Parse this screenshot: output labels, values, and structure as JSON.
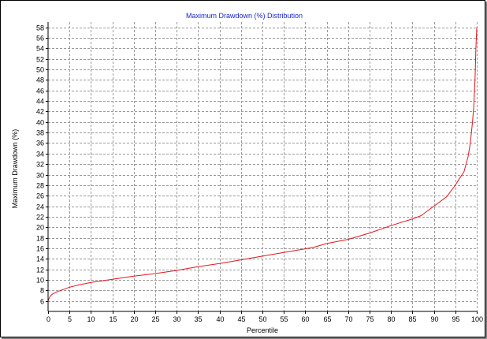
{
  "chart_data": {
    "type": "line",
    "title": "Maximum Drawdown (%) Distribution",
    "xlabel": "Percentile",
    "ylabel": "Maximum Drawdown (%)",
    "xlim": [
      0,
      100
    ],
    "ylim": [
      4,
      59
    ],
    "x_ticks": [
      0,
      5,
      10,
      15,
      20,
      25,
      30,
      35,
      40,
      45,
      50,
      55,
      60,
      65,
      70,
      75,
      80,
      85,
      90,
      95,
      100
    ],
    "y_ticks": [
      6,
      8,
      10,
      12,
      14,
      16,
      18,
      20,
      22,
      24,
      26,
      28,
      30,
      32,
      34,
      36,
      38,
      40,
      42,
      44,
      46,
      48,
      50,
      52,
      54,
      56,
      58
    ],
    "grid": true,
    "line_color": "#e8131b",
    "series": [
      {
        "x": [
          0,
          0.3,
          0.6,
          1,
          2,
          3,
          5,
          7,
          10,
          15,
          20,
          25,
          30,
          35,
          40,
          45,
          50,
          55,
          60,
          62,
          65,
          70,
          75,
          80,
          85,
          87,
          90,
          93,
          95,
          96,
          97,
          98,
          98.5,
          99,
          99.3,
          99.6,
          99.8,
          100
        ],
        "y": [
          6.0,
          6.6,
          7.0,
          7.3,
          7.7,
          8.0,
          8.6,
          9.0,
          9.5,
          10.1,
          10.7,
          11.2,
          11.8,
          12.5,
          13.1,
          13.8,
          14.5,
          15.2,
          15.9,
          16.2,
          16.9,
          17.7,
          18.9,
          20.3,
          21.6,
          22.2,
          24.0,
          25.8,
          28.0,
          29.3,
          30.5,
          33.5,
          36.0,
          40.0,
          43.0,
          48.0,
          54.0,
          58.0
        ]
      }
    ]
  }
}
